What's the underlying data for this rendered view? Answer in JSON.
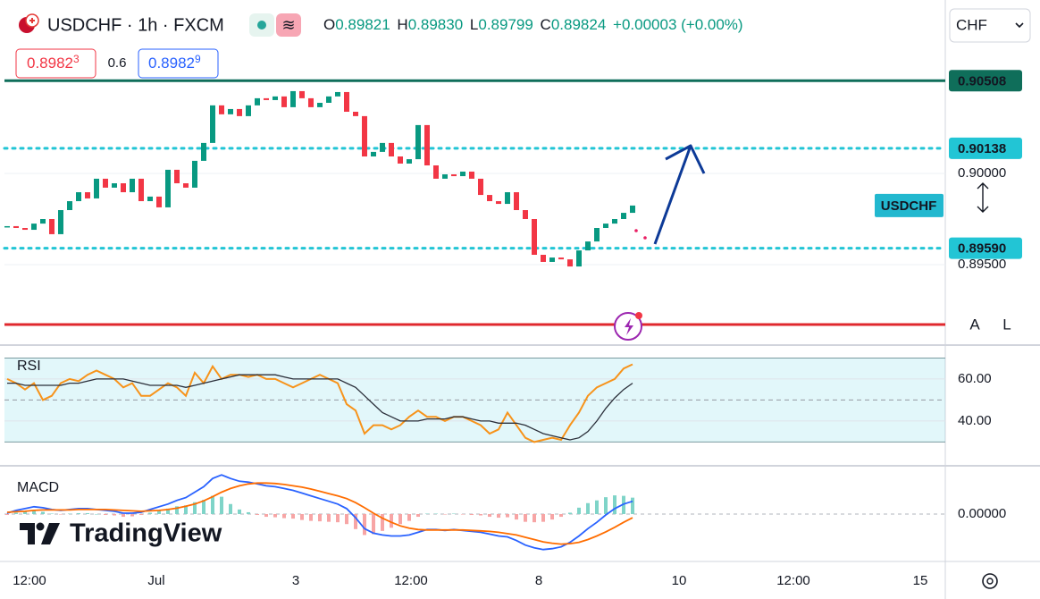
{
  "header": {
    "ohlc": [
      {
        "key": "O",
        "value": "0.89821"
      },
      {
        "key": "H",
        "value": "0.89830"
      },
      {
        "key": "L",
        "value": "0.89799"
      },
      {
        "key": "C",
        "value": "0.89824"
      }
    ],
    "change": "+0.00003 (+0.00%)",
    "bid": {
      "main": "0.8982",
      "pip": "3"
    },
    "spread": "0.6",
    "ask": {
      "main": "0.8982",
      "pip": "9"
    }
  },
  "controls": {
    "currency": "CHF",
    "auto": "A",
    "log": "L"
  },
  "watermark": "TradingView",
  "chart_data": [
    {
      "type": "candlestick",
      "title": "USDCHF · 1h · FXCM",
      "symbol_label": "USDCHF",
      "up_color": "#089981",
      "down_color": "#f23645",
      "values": [
        0.89711,
        0.89701,
        0.89691,
        0.89725,
        0.8975,
        0.89667,
        0.89799,
        0.89848,
        0.89897,
        0.89863,
        0.89971,
        0.89922,
        0.89946,
        0.89897,
        0.89971,
        0.89848,
        0.89873,
        0.89814,
        0.9002,
        0.89946,
        0.89922,
        0.90069,
        0.90167,
        0.90373,
        0.90324,
        0.90353,
        0.90314,
        0.90373,
        0.90412,
        0.90402,
        0.90422,
        0.90363,
        0.90451,
        0.90412,
        0.90363,
        0.90387,
        0.90422,
        0.90446,
        0.90338,
        0.90314,
        0.90093,
        0.90118,
        0.90167,
        0.90093,
        0.90054,
        0.90078,
        0.90265,
        0.90044,
        0.89971,
        0.89995,
        0.89985,
        0.9001,
        0.89971,
        0.89882,
        0.89848,
        0.89833,
        0.89897,
        0.89799,
        0.8975,
        0.89554,
        0.89515,
        0.89539,
        0.89529,
        0.8949,
        0.89578,
        0.89627,
        0.89701,
        0.89725,
        0.8975,
        0.89784,
        0.89824
      ],
      "ylim": [
        0.89064,
        0.90926
      ],
      "yticks": [
        {
          "value": 0.9,
          "label": "0.90000"
        },
        {
          "value": 0.895,
          "label": "0.89500"
        }
      ],
      "levels": [
        {
          "value": 0.90508,
          "label": "0.90508",
          "color": "#0f6e5a",
          "style": "solid"
        },
        {
          "value": 0.90138,
          "label": "0.90138",
          "color": "#22c5d5",
          "style": "dotted"
        },
        {
          "value": 0.8959,
          "label": "0.89590",
          "color": "#22c5d5",
          "style": "dotted"
        },
        {
          "value": 0.89172,
          "color": "#e0282e",
          "style": "solid"
        }
      ],
      "xlim": [
        -0.3,
        105
      ],
      "xticks": [
        {
          "value": 2.5,
          "label": "12:00"
        },
        {
          "value": 16.7,
          "label": "Jul"
        },
        {
          "value": 32.3,
          "label": "3"
        },
        {
          "value": 45.2,
          "label": "12:00"
        },
        {
          "value": 59.5,
          "label": "8"
        },
        {
          "value": 75.2,
          "label": "10"
        },
        {
          "value": 88,
          "label": "12:00"
        },
        {
          "value": 102.2,
          "label": "15"
        }
      ]
    },
    {
      "type": "line",
      "title": "RSI",
      "series": [
        {
          "color": "#f7931a",
          "values": [
            60,
            58,
            55,
            58,
            50,
            52,
            58,
            60,
            59,
            62,
            64,
            62,
            60,
            56,
            58,
            52,
            52,
            55,
            58,
            56,
            52,
            63,
            58,
            66,
            60,
            62,
            62,
            61,
            62,
            60,
            60,
            58,
            56,
            58,
            60,
            62,
            60,
            58,
            48,
            45,
            34,
            38,
            38,
            36,
            38,
            42,
            45,
            42,
            42,
            40,
            42,
            42,
            40,
            38,
            34,
            36,
            44,
            38,
            32,
            30,
            31,
            32,
            31,
            38,
            44,
            52,
            56,
            58,
            60,
            65,
            67
          ]
        },
        {
          "color": "#2a2e39",
          "values": [
            58,
            58,
            57,
            57,
            57,
            57,
            57,
            58,
            58,
            59,
            60,
            60,
            60,
            60,
            59,
            58,
            57,
            57,
            57,
            57,
            56,
            57,
            58,
            59,
            60,
            61,
            62,
            62,
            62,
            62,
            62,
            61,
            60,
            60,
            60,
            60,
            60,
            60,
            58,
            56,
            52,
            48,
            44,
            42,
            40,
            40,
            40,
            41,
            41,
            41,
            42,
            42,
            41,
            40,
            40,
            39,
            39,
            39,
            38,
            36,
            34,
            33,
            32,
            31,
            32,
            35,
            40,
            46,
            51,
            55,
            58
          ]
        }
      ],
      "ylim": [
        19.1,
        75.3
      ],
      "band": [
        30,
        70
      ],
      "midline": 50,
      "yticks": [
        {
          "value": 60,
          "label": "60.00"
        },
        {
          "value": 40,
          "label": "40.00"
        }
      ]
    },
    {
      "type": "macd",
      "title": "MACD",
      "series": [
        {
          "color": "#2962ff",
          "values": [
            2e-05,
            8e-05,
            0.00012,
            0.00016,
            0.00014,
            0.0001,
            8e-05,
            0.0001,
            0.00012,
            0.00012,
            0.0001,
            8e-05,
            6e-05,
            2e-05,
            2e-05,
            4e-05,
            0.0001,
            0.00016,
            0.00022,
            0.0003,
            0.00036,
            0.00048,
            0.0006,
            0.00078,
            0.00086,
            0.00078,
            0.00072,
            0.0007,
            0.00066,
            0.00062,
            0.0006,
            0.00056,
            0.00052,
            0.00046,
            0.0004,
            0.00034,
            0.00028,
            0.00022,
            0.00012,
            -8e-05,
            -0.00032,
            -0.00042,
            -0.00046,
            -0.00048,
            -0.00048,
            -0.00046,
            -0.0004,
            -0.00034,
            -0.00034,
            -0.00036,
            -0.00034,
            -0.00036,
            -0.00038,
            -0.0004,
            -0.00044,
            -0.00048,
            -0.0005,
            -0.00058,
            -0.00068,
            -0.00074,
            -0.00078,
            -0.00076,
            -0.00072,
            -0.00062,
            -0.00048,
            -0.00032,
            -0.00018,
            -2e-05,
            0.00012,
            0.00022,
            0.00028
          ]
        },
        {
          "color": "#ff6d00",
          "values": [
            4e-05,
            5e-05,
            6e-05,
            8e-05,
            9e-05,
            9e-05,
            9e-05,
            9e-05,
            0.0001,
            0.0001,
            0.0001,
            0.0001,
            9e-05,
            8e-05,
            7e-05,
            6e-05,
            7e-05,
            8e-05,
            0.0001,
            0.00013,
            0.00017,
            0.00022,
            0.00029,
            0.00038,
            0.00048,
            0.00056,
            0.00062,
            0.00066,
            0.00068,
            0.00068,
            0.00067,
            0.00065,
            0.00062,
            0.00059,
            0.00055,
            0.0005,
            0.00045,
            0.0004,
            0.00034,
            0.00025,
            0.00014,
            2e-05,
            -9e-05,
            -0.00018,
            -0.00026,
            -0.00031,
            -0.00034,
            -0.00035,
            -0.00035,
            -0.00035,
            -0.00035,
            -0.00035,
            -0.00036,
            -0.00037,
            -0.00038,
            -0.0004,
            -0.00043,
            -0.00046,
            -0.00051,
            -0.00056,
            -0.00061,
            -0.00064,
            -0.00066,
            -0.00065,
            -0.00062,
            -0.00056,
            -0.00048,
            -0.00039,
            -0.00029,
            -0.00018,
            -8e-05
          ]
        },
        {
          "type": "histogram",
          "up_color": "#7fd4c8",
          "down_color": "#f7a5a5",
          "values": [
            -2e-05,
            3e-05,
            6e-05,
            8e-05,
            5e-05,
            1e-05,
            -1e-05,
            1e-05,
            2e-05,
            2e-05,
            0,
            -2e-05,
            -3e-05,
            -6e-05,
            -5e-05,
            -2e-05,
            3e-05,
            8e-05,
            0.00012,
            0.00017,
            0.00019,
            0.00026,
            0.00031,
            0.0004,
            0.00038,
            0.00022,
            0.0001,
            4e-05,
            -2e-05,
            -6e-05,
            -7e-05,
            -9e-05,
            -0.0001,
            -0.00013,
            -0.00015,
            -0.00016,
            -0.00017,
            -0.00018,
            -0.00022,
            -0.00033,
            -0.00046,
            -0.00044,
            -0.00037,
            -0.0003,
            -0.00022,
            -0.00015,
            -6e-05,
            1e-05,
            1e-05,
            -1e-05,
            1e-05,
            -1e-05,
            -2e-05,
            -3e-05,
            -6e-05,
            -8e-05,
            -7e-05,
            -0.00012,
            -0.00017,
            -0.00018,
            -0.00017,
            -0.00012,
            -6e-05,
            3e-05,
            0.00014,
            0.00024,
            0.0003,
            0.00037,
            0.00041,
            0.0004,
            0.00036
          ]
        }
      ],
      "ylim": [
        -0.00104,
        0.00102
      ],
      "yticks": [
        {
          "value": 0,
          "label": "0.00000"
        }
      ]
    }
  ]
}
